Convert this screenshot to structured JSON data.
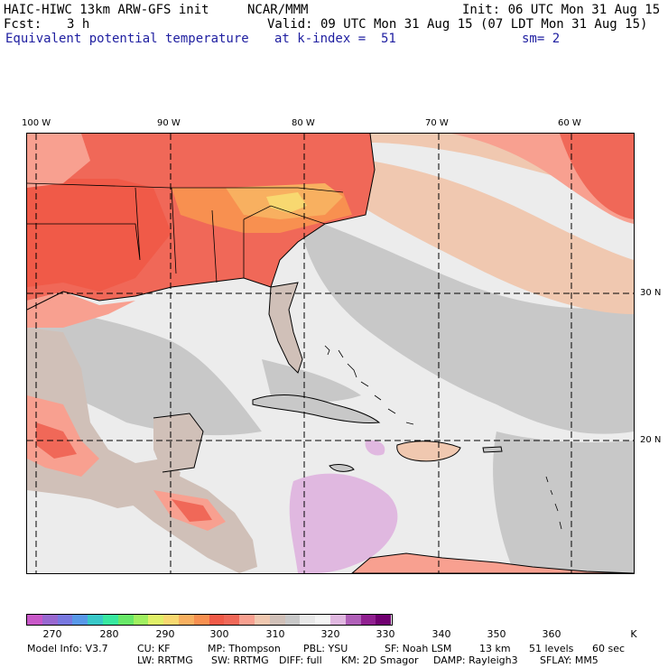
{
  "header": {
    "model_title": "HAIC-HIWC 13km ARW-GFS init",
    "org": "NCAR/MMM",
    "init": "Init: 06 UTC Mon 31 Aug 15",
    "fcst_label": "Fcst:",
    "fcst_value": "3 h",
    "valid": "Valid: 09 UTC Mon 31 Aug 15 (07 LDT Mon 31 Aug 15)",
    "field_name": "Equivalent potential temperature",
    "level": "at k-index =  51",
    "smoothing": "sm= 2"
  },
  "map": {
    "longitude_labels": [
      "100 W",
      "90 W",
      "80 W",
      "70 W",
      "60 W"
    ],
    "latitude_labels": [
      "30 N",
      "20 N"
    ]
  },
  "colorbar": {
    "colors": [
      "#c858c8",
      "#9868d0",
      "#7878e0",
      "#5898e8",
      "#38c8c8",
      "#38e8a0",
      "#68e868",
      "#a0f060",
      "#e0f068",
      "#f8d870",
      "#f8b060",
      "#f89050",
      "#f05a48",
      "#f06858",
      "#f8a090",
      "#f0c8b0",
      "#d0c0b8",
      "#c8c8c8",
      "#e8e8e8",
      "#f4f4f4",
      "#e0b8e0",
      "#b060b8",
      "#902090",
      "#700070"
    ],
    "tick_labels": [
      "270",
      "280",
      "290",
      "300",
      "310",
      "320",
      "330",
      "340",
      "350",
      "360"
    ],
    "unit": "K"
  },
  "footer": {
    "model_info": "Model Info: V3.7",
    "cu": "CU: KF",
    "mp": "MP: Thompson",
    "pbl": "PBL: YSU",
    "sf": "SF: Noah LSM",
    "res": "13 km",
    "levels": "51 levels",
    "dt": "60 sec",
    "lw": "LW: RRTMG",
    "sw": "SW: RRTMG",
    "diff": "DIFF: full",
    "km": "KM: 2D Smagor",
    "damp": "DAMP: Rayleigh3",
    "sflay": "SFLAY: MM5"
  }
}
